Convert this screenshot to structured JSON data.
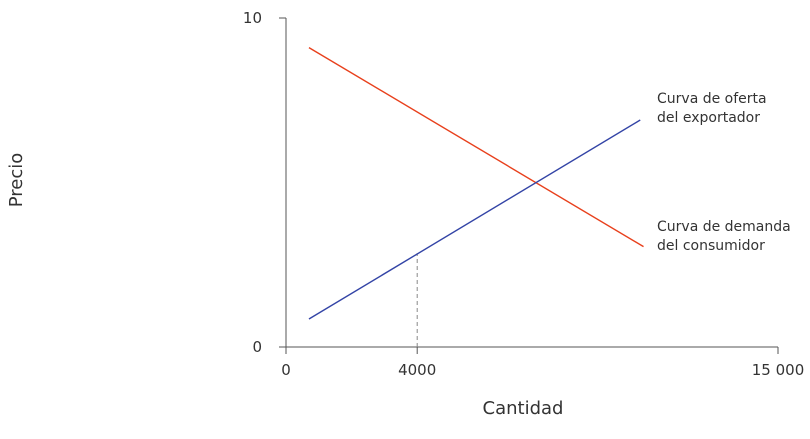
{
  "chart_data": {
    "type": "line",
    "title": "",
    "xlabel": "Cantidad",
    "ylabel": "Precio",
    "xlim": [
      0,
      15000
    ],
    "ylim": [
      0,
      10
    ],
    "x_ticks": [
      {
        "value": 0,
        "label": "0"
      },
      {
        "value": 4000,
        "label": "4000"
      },
      {
        "value": 15000,
        "label": "15 000"
      }
    ],
    "y_ticks": [
      {
        "value": 0,
        "label": "0"
      },
      {
        "value": 10,
        "label": "10"
      }
    ],
    "grid": false,
    "series": [
      {
        "name": "Curva de demanda del consumidor",
        "label_lines": [
          "Curva de demanda",
          "del consumidor"
        ],
        "color": "#e8401c",
        "x": [
          700,
          10900
        ],
        "y": [
          9.1,
          3.05
        ]
      },
      {
        "name": "Curva de oferta del exportador",
        "label_lines": [
          "Curva de oferta",
          "del exportador"
        ],
        "color": "#3344a6",
        "x": [
          700,
          10800
        ],
        "y": [
          0.85,
          6.9
        ]
      }
    ],
    "reference_lines": [
      {
        "x": 4000,
        "y_from": 0,
        "y_to": 2.85,
        "style": "dashed",
        "color": "#888888"
      }
    ]
  }
}
